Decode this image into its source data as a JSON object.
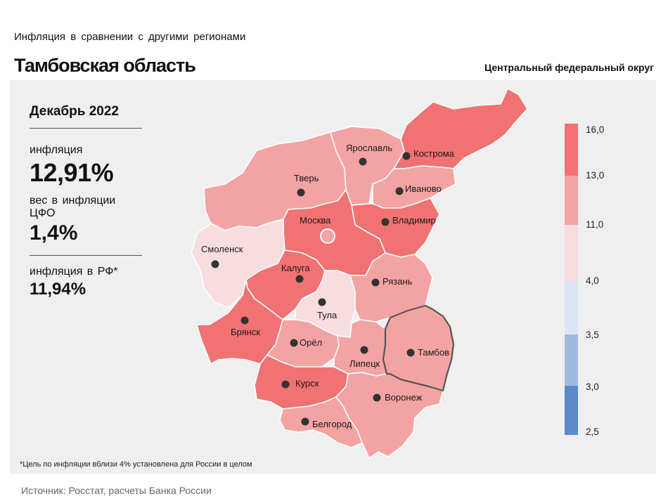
{
  "header": {
    "subtitle": "Инфляция  в сравнении  с другими  регионами",
    "title": "Тамбовская область",
    "district": "Центральный федеральный округ"
  },
  "stats": {
    "period": "Декабрь 2022",
    "inflation_label": "инфляция",
    "inflation_value": "12,91%",
    "weight_label": "вес в инфляции  ЦФО",
    "weight_value": "1,4%",
    "rf_label": "инфляция  в РФ*",
    "rf_value": "11,94%"
  },
  "footnote": "*Цель по инфляции вблизи 4% установлена для России в целом",
  "source": "Источник: Росстат, расчеты Банка России",
  "colors": {
    "c13_16": "#f07272",
    "c11_13": "#f4a3a3",
    "c4_11": "#f8dde0",
    "c35_4": "#dbe5f3",
    "c3_35": "#a1bbe0",
    "c25_3": "#5b8bc9",
    "highlight": "#f4a3a3"
  },
  "legend": {
    "ticks": [
      "16,0",
      "13,0",
      "11,0",
      "4,0",
      "3,5",
      "3,0",
      "2,5"
    ]
  },
  "regions": [
    {
      "name": "Тверь",
      "class": "11-13"
    },
    {
      "name": "Ярославль",
      "class": "11-13"
    },
    {
      "name": "Кострома",
      "class": "13-16"
    },
    {
      "name": "Иваново",
      "class": "11-13"
    },
    {
      "name": "Владимир",
      "class": "13-16"
    },
    {
      "name": "Москва",
      "class": "13-16"
    },
    {
      "name": "Смоленск",
      "class": "4-11"
    },
    {
      "name": "Калуга",
      "class": "13-16"
    },
    {
      "name": "Тула",
      "class": "4-11"
    },
    {
      "name": "Рязань",
      "class": "11-13"
    },
    {
      "name": "Брянск",
      "class": "13-16"
    },
    {
      "name": "Орёл",
      "class": "11-13"
    },
    {
      "name": "Липецк",
      "class": "11-13"
    },
    {
      "name": "Тамбов",
      "class": "11-13",
      "highlighted": true
    },
    {
      "name": "Курск",
      "class": "13-16"
    },
    {
      "name": "Воронеж",
      "class": "11-13"
    },
    {
      "name": "Белгород",
      "class": "11-13"
    }
  ]
}
